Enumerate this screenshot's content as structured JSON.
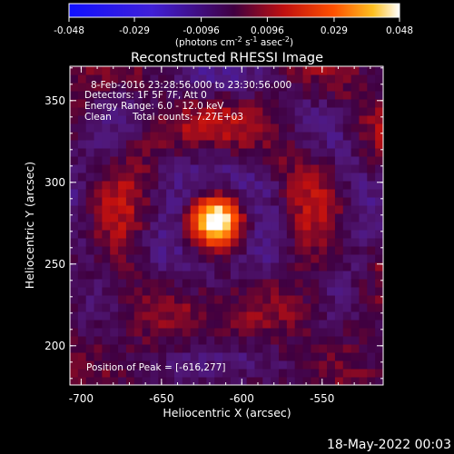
{
  "chart_data": {
    "type": "heatmap",
    "title": "Reconstructed RHESSI Image",
    "xlabel": "Heliocentric X (arcsec)",
    "ylabel": "Heliocentric Y (arcsec)",
    "xlim": [
      -707,
      -512
    ],
    "ylim": [
      176,
      371
    ],
    "x_ticks": [
      "-700",
      "-650",
      "-600",
      "-550"
    ],
    "x_tick_values": [
      -700,
      -650,
      -600,
      -550
    ],
    "y_ticks": [
      "200",
      "250",
      "300",
      "350"
    ],
    "y_tick_values": [
      200,
      250,
      300,
      350
    ],
    "colorbar": {
      "ticks": [
        "-0.048",
        "-0.029",
        "-0.0096",
        "0.0096",
        "0.029",
        "0.048"
      ],
      "tick_values": [
        -0.048,
        -0.029,
        -0.0096,
        0.0096,
        0.029,
        0.048
      ],
      "range": [
        -0.048,
        0.048
      ],
      "units": "(photons cm",
      "units_exp1": "-2",
      "units_mid": " s",
      "units_exp2": "-1",
      "units_tail": " asec",
      "units_exp3": "-2",
      "units_close": ")"
    },
    "annotations": {
      "time": "8-Feb-2016 23:28:56.000 to 23:30:56.000",
      "detectors": "Detectors: 1F 5F 7F, Att 0",
      "energy": "Energy Range: 6.0 - 12.0 keV",
      "method": "Clean",
      "counts": "Total counts: 7.27E+03",
      "peak": "Position of Peak = [-616,277]"
    },
    "peak": {
      "x": -616,
      "y": 277,
      "value": 0.048
    },
    "grid": false
  },
  "footer": {
    "date": "18-May-2022 00:03"
  },
  "colors": {
    "background": "#000000",
    "text": "#ffffff"
  }
}
